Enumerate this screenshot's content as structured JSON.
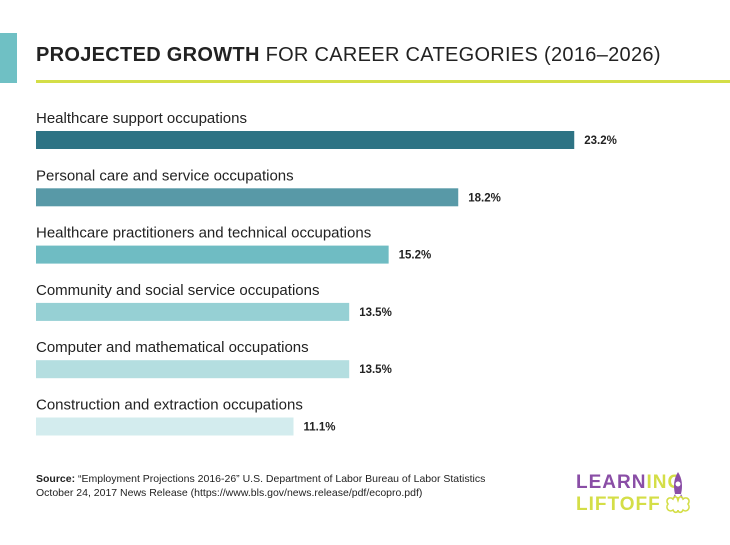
{
  "header": {
    "title_bold": "PROJECTED GROWTH",
    "title_rest": "FOR CAREER CATEGORIES (2016–2026)"
  },
  "colors": {
    "accent": "#6fc0c4",
    "rule": "#d4de47",
    "bars": [
      "#2e7384",
      "#5899a7",
      "#6fbcc3",
      "#96d0d4",
      "#b4dee0",
      "#d3ecee"
    ]
  },
  "chart_data": {
    "type": "bar",
    "orientation": "horizontal",
    "title": "PROJECTED GROWTH FOR CAREER CATEGORIES (2016–2026)",
    "categories": [
      "Healthcare support occupations",
      "Personal care and service occupations",
      "Healthcare practitioners and technical occupations",
      "Community and social service occupations",
      "Computer and mathematical occupations",
      "Construction and extraction occupations"
    ],
    "values": [
      23.2,
      18.2,
      15.2,
      13.5,
      13.5,
      11.1
    ],
    "value_labels": [
      "23.2%",
      "18.2%",
      "15.2%",
      "13.5%",
      "13.5%",
      "11.1%"
    ],
    "unit": "%",
    "grid": false,
    "legend": "none"
  },
  "source": {
    "label": "Source:",
    "text": "“Employment Projections 2016-26” U.S. Department of Labor Bureau of Labor Statistics",
    "line2": "October 24, 2017 News Release (https://www.bls.gov/news.release/pdf/ecopro.pdf)"
  },
  "logo": {
    "line1_a": "LEARN",
    "line1_b": "ING",
    "line2": "LIFTOFF"
  }
}
